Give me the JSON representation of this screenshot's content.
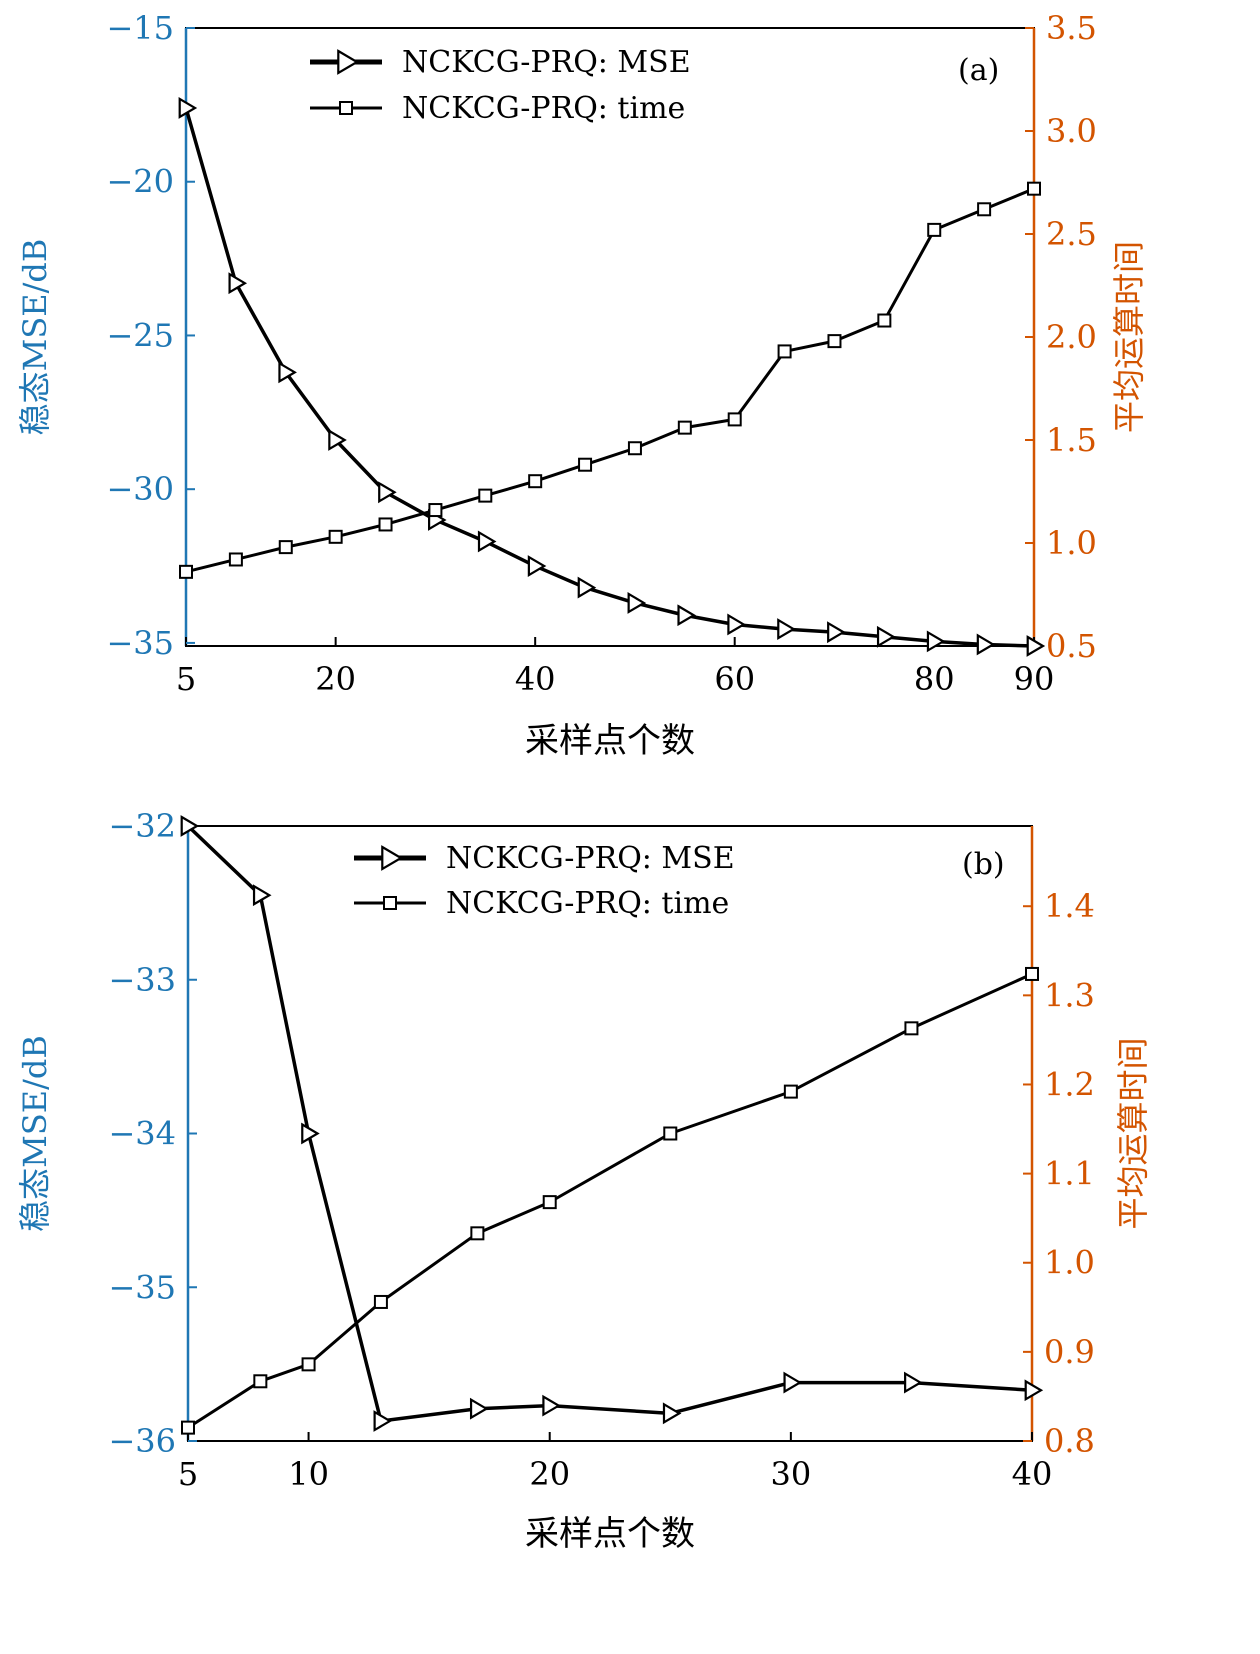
{
  "colors": {
    "left_axis": "#1f77b4",
    "right_axis": "#d35400",
    "series": "#000000"
  },
  "chart_data": [
    {
      "type": "line",
      "panel_label": "(a)",
      "xlabel": "采样点个数",
      "ylabel_left": "稳态MSE/dB",
      "ylabel_right": "平均运算时间",
      "xlim": [
        5,
        90
      ],
      "ylim_left": [
        -35.1,
        -15
      ],
      "ylim_right": [
        0.5,
        3.5
      ],
      "xticks": [
        5,
        20,
        40,
        60,
        80,
        90
      ],
      "yticks_left": [
        -15,
        -20,
        -25,
        -30,
        -35
      ],
      "yticks_right": [
        "3.5",
        "3.0",
        "2.5",
        "2.0",
        "1.5",
        "1.0",
        "0.5"
      ],
      "legend_position": "top-center",
      "series": [
        {
          "name": "NCKCG-PRQ: MSE",
          "axis": "left",
          "marker": "triangle-right",
          "x": [
            5,
            10,
            15,
            20,
            25,
            30,
            35,
            40,
            45,
            50,
            55,
            60,
            65,
            70,
            75,
            80,
            85,
            90
          ],
          "values": [
            -17.6,
            -23.3,
            -26.2,
            -28.4,
            -30.1,
            -31.0,
            -31.7,
            -32.5,
            -33.2,
            -33.7,
            -34.1,
            -34.4,
            -34.55,
            -34.65,
            -34.8,
            -34.95,
            -35.05,
            -35.1
          ]
        },
        {
          "name": "NCKCG-PRQ: time",
          "axis": "right",
          "marker": "square",
          "x": [
            5,
            10,
            15,
            20,
            25,
            30,
            35,
            40,
            45,
            50,
            55,
            60,
            65,
            70,
            75,
            80,
            85,
            90
          ],
          "values": [
            0.86,
            0.92,
            0.98,
            1.03,
            1.09,
            1.16,
            1.23,
            1.3,
            1.38,
            1.46,
            1.56,
            1.6,
            1.93,
            1.98,
            2.08,
            2.52,
            2.62,
            2.72
          ]
        }
      ]
    },
    {
      "type": "line",
      "panel_label": "(b)",
      "xlabel": "采样点个数",
      "ylabel_left": "稳态MSE/dB",
      "ylabel_right": "平均运算时间",
      "xlim": [
        5,
        40
      ],
      "ylim_left": [
        -36,
        -32
      ],
      "ylim_right": [
        0.8,
        1.49
      ],
      "xticks": [
        5,
        10,
        20,
        30,
        40
      ],
      "yticks_left": [
        -32,
        -33,
        -34,
        -35,
        -36
      ],
      "yticks_right": [
        "1.4",
        "1.3",
        "1.2",
        "1.1",
        "1.0",
        "0.9",
        "0.8"
      ],
      "legend_position": "top-center",
      "series": [
        {
          "name": "NCKCG-PRQ: MSE",
          "axis": "left",
          "marker": "triangle-right",
          "x": [
            5,
            8,
            10,
            13,
            17,
            20,
            25,
            30,
            35,
            40
          ],
          "values": [
            -32.0,
            -32.45,
            -34.0,
            -35.87,
            -35.79,
            -35.77,
            -35.82,
            -35.62,
            -35.62,
            -35.67
          ]
        },
        {
          "name": "NCKCG-PRQ: time",
          "axis": "right",
          "marker": "square",
          "x": [
            5,
            8,
            10,
            13,
            17,
            20,
            25,
            30,
            35,
            40
          ],
          "values": [
            0.815,
            0.867,
            0.886,
            0.956,
            1.033,
            1.068,
            1.145,
            1.192,
            1.263,
            1.324
          ]
        }
      ]
    }
  ]
}
